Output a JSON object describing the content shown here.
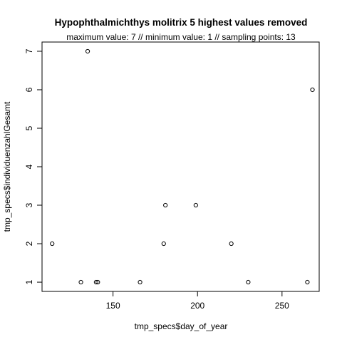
{
  "chart_data": {
    "type": "scatter",
    "title": "Hypophthalmichthys molitrix  5 highest values removed",
    "subtitle": "maximum value: 7  //  minimum value: 1  // sampling points: 13",
    "xlabel": "tmp_specs$day_of_year",
    "ylabel": "tmp_specs$individuenzahlGesamt",
    "xlim": [
      108,
      272
    ],
    "ylim": [
      0.76,
      7.24
    ],
    "xticks": [
      150,
      200,
      250
    ],
    "yticks": [
      1,
      2,
      3,
      4,
      5,
      6,
      7
    ],
    "grid": false,
    "points": [
      {
        "x": 114,
        "y": 2
      },
      {
        "x": 131,
        "y": 1
      },
      {
        "x": 135,
        "y": 7
      },
      {
        "x": 140,
        "y": 1
      },
      {
        "x": 141,
        "y": 1
      },
      {
        "x": 166,
        "y": 1
      },
      {
        "x": 180,
        "y": 2
      },
      {
        "x": 181,
        "y": 3
      },
      {
        "x": 199,
        "y": 3
      },
      {
        "x": 220,
        "y": 2
      },
      {
        "x": 230,
        "y": 1
      },
      {
        "x": 265,
        "y": 1
      },
      {
        "x": 268,
        "y": 6
      }
    ]
  }
}
